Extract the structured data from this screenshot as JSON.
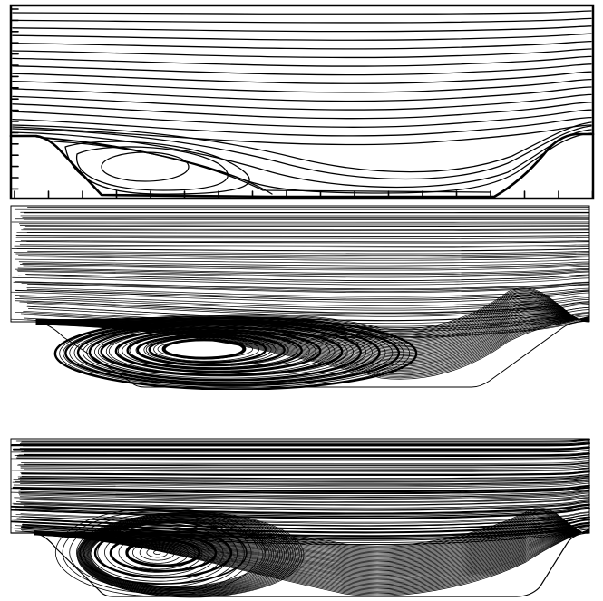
{
  "figure": {
    "description_panels": [
      "panel-1",
      "panel-2",
      "panel-3"
    ],
    "stroke_color": "#000000",
    "background_color": "#ffffff",
    "panels": [
      {
        "id": "panel-1",
        "style": "smooth-streamlines",
        "framed": true,
        "has_tick_marks": true,
        "recirculation_vortex": true
      },
      {
        "id": "panel-2",
        "style": "dense-pathlines",
        "framed": false,
        "has_tick_marks": false,
        "recirculation_vortex": true
      },
      {
        "id": "panel-3",
        "style": "dense-pathlines-spiral",
        "framed": false,
        "has_tick_marks": false,
        "recirculation_vortex": true
      }
    ]
  }
}
